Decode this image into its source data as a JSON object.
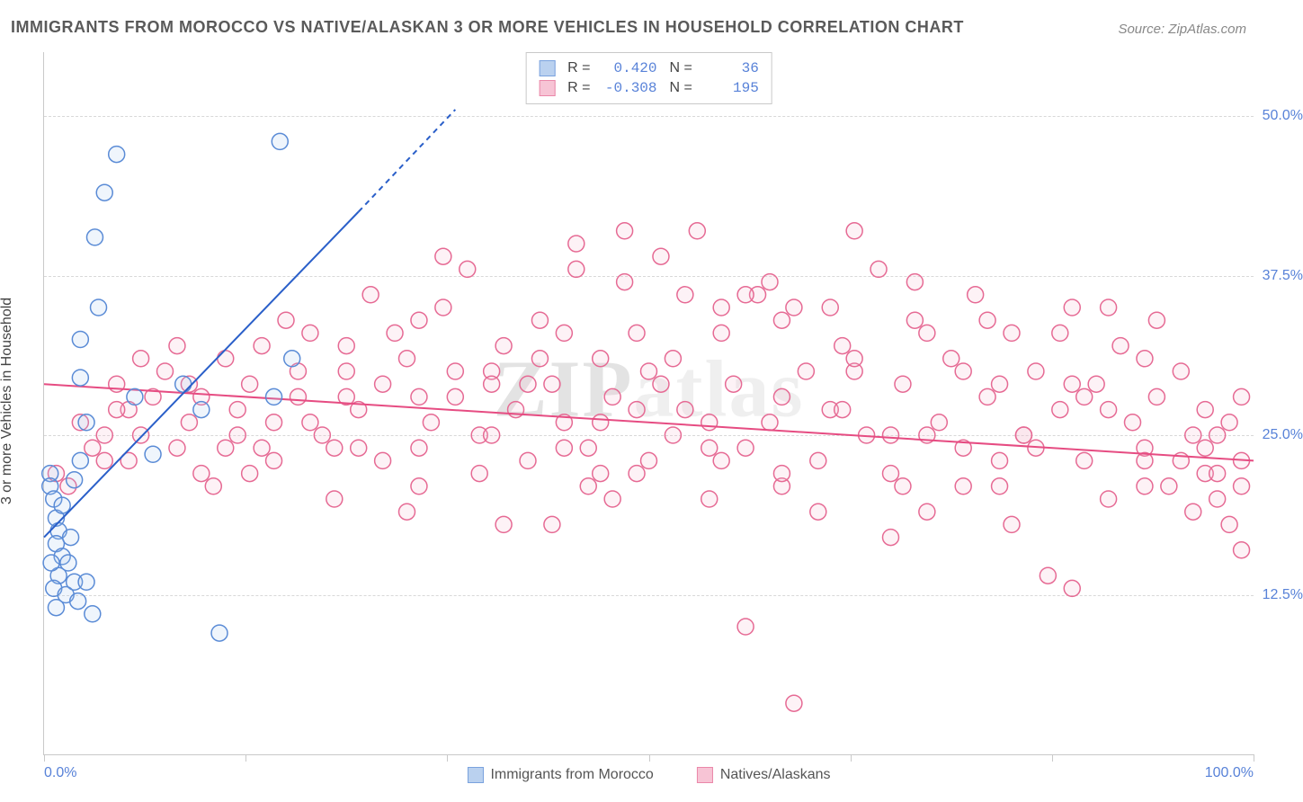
{
  "title": "IMMIGRANTS FROM MOROCCO VS NATIVE/ALASKAN 3 OR MORE VEHICLES IN HOUSEHOLD CORRELATION CHART",
  "source": "Source: ZipAtlas.com",
  "watermark_a": "ZIP",
  "watermark_b": "atlas",
  "y_axis_label": "3 or more Vehicles in Household",
  "chart": {
    "type": "scatter",
    "xlim": [
      0,
      100
    ],
    "ylim": [
      0,
      55
    ],
    "y_ticks": [
      12.5,
      25.0,
      37.5,
      50.0
    ],
    "y_tick_labels": [
      "12.5%",
      "25.0%",
      "37.5%",
      "50.0%"
    ],
    "x_ticks": [
      0,
      100
    ],
    "x_tick_labels": [
      "0.0%",
      "100.0%"
    ],
    "x_tick_marks": [
      0,
      16.67,
      33.33,
      50,
      66.67,
      83.33,
      100
    ],
    "background_color": "#ffffff",
    "grid_color": "#d8d8d8",
    "axis_color": "#c9c9c9",
    "tick_label_color": "#5882d8",
    "marker_radius": 9,
    "marker_stroke_width": 1.5,
    "marker_fill_opacity": 0.18,
    "series": [
      {
        "name": "Immigrants from Morocco",
        "legend_label": "Immigrants from Morocco",
        "color_stroke": "#5a8bd6",
        "color_fill": "#a9c6ec",
        "R": "0.420",
        "N": "36",
        "regression": {
          "x1": 0,
          "y1": 17.0,
          "x2": 26,
          "y2": 42.5,
          "dash_extend_to_x": 34,
          "dash_extend_to_y": 50.5,
          "color": "#2a5fc9",
          "width": 2
        },
        "points": [
          [
            0.5,
            22.0
          ],
          [
            0.5,
            21.0
          ],
          [
            0.8,
            20.0
          ],
          [
            1.0,
            18.5
          ],
          [
            1.2,
            17.5
          ],
          [
            1.0,
            16.5
          ],
          [
            1.5,
            15.5
          ],
          [
            2.0,
            15.0
          ],
          [
            1.2,
            14.0
          ],
          [
            2.5,
            13.5
          ],
          [
            0.8,
            13.0
          ],
          [
            1.8,
            12.5
          ],
          [
            2.8,
            12.0
          ],
          [
            1.0,
            11.5
          ],
          [
            3.5,
            13.5
          ],
          [
            4.0,
            11.0
          ],
          [
            3.0,
            23.0
          ],
          [
            3.5,
            26.0
          ],
          [
            4.5,
            35.0
          ],
          [
            5.0,
            44.0
          ],
          [
            6.0,
            47.0
          ],
          [
            3.0,
            29.5
          ],
          [
            3.0,
            32.5
          ],
          [
            2.5,
            21.5
          ],
          [
            4.2,
            40.5
          ],
          [
            7.5,
            28.0
          ],
          [
            9.0,
            23.5
          ],
          [
            11.5,
            29.0
          ],
          [
            13.0,
            27.0
          ],
          [
            14.5,
            9.5
          ],
          [
            19.5,
            48.0
          ],
          [
            19.0,
            28.0
          ],
          [
            20.5,
            31.0
          ],
          [
            1.5,
            19.5
          ],
          [
            2.2,
            17.0
          ],
          [
            0.6,
            15.0
          ]
        ]
      },
      {
        "name": "Natives/Alaskans",
        "legend_label": "Natives/Alaskans",
        "color_stroke": "#e66a94",
        "color_fill": "#f6b6cb",
        "R": "-0.308",
        "N": "195",
        "regression": {
          "x1": 0,
          "y1": 29.0,
          "x2": 100,
          "y2": 23.0,
          "color": "#e64c82",
          "width": 2
        },
        "points": [
          [
            1,
            22
          ],
          [
            2,
            21
          ],
          [
            3,
            26
          ],
          [
            4,
            24
          ],
          [
            5,
            23
          ],
          [
            6,
            29
          ],
          [
            7,
            27
          ],
          [
            8,
            25
          ],
          [
            9,
            28
          ],
          [
            10,
            30
          ],
          [
            11,
            24
          ],
          [
            12,
            26
          ],
          [
            13,
            22
          ],
          [
            14,
            21
          ],
          [
            15,
            31
          ],
          [
            16,
            27
          ],
          [
            17,
            29
          ],
          [
            18,
            24
          ],
          [
            19,
            26
          ],
          [
            20,
            34
          ],
          [
            21,
            28
          ],
          [
            22,
            33
          ],
          [
            23,
            25
          ],
          [
            24,
            24
          ],
          [
            25,
            30
          ],
          [
            26,
            27
          ],
          [
            27,
            36
          ],
          [
            28,
            29
          ],
          [
            29,
            33
          ],
          [
            30,
            31
          ],
          [
            31,
            24
          ],
          [
            32,
            26
          ],
          [
            33,
            35
          ],
          [
            34,
            28
          ],
          [
            35,
            38
          ],
          [
            36,
            25
          ],
          [
            37,
            30
          ],
          [
            38,
            32
          ],
          [
            39,
            27
          ],
          [
            40,
            23
          ],
          [
            41,
            34
          ],
          [
            42,
            29
          ],
          [
            43,
            26
          ],
          [
            44,
            40
          ],
          [
            45,
            24
          ],
          [
            46,
            31
          ],
          [
            47,
            28
          ],
          [
            48,
            37
          ],
          [
            49,
            22
          ],
          [
            50,
            30
          ],
          [
            51,
            39
          ],
          [
            52,
            25
          ],
          [
            53,
            27
          ],
          [
            54,
            41
          ],
          [
            55,
            20
          ],
          [
            56,
            33
          ],
          [
            57,
            29
          ],
          [
            58,
            24
          ],
          [
            59,
            36
          ],
          [
            60,
            26
          ],
          [
            61,
            21
          ],
          [
            62,
            35
          ],
          [
            63,
            30
          ],
          [
            64,
            23
          ],
          [
            65,
            27
          ],
          [
            66,
            32
          ],
          [
            67,
            41
          ],
          [
            68,
            25
          ],
          [
            69,
            38
          ],
          [
            70,
            22
          ],
          [
            71,
            29
          ],
          [
            72,
            34
          ],
          [
            73,
            19
          ],
          [
            74,
            26
          ],
          [
            75,
            31
          ],
          [
            76,
            24
          ],
          [
            77,
            36
          ],
          [
            78,
            28
          ],
          [
            79,
            21
          ],
          [
            80,
            33
          ],
          [
            81,
            25
          ],
          [
            82,
            30
          ],
          [
            83,
            14
          ],
          [
            84,
            27
          ],
          [
            85,
            35
          ],
          [
            86,
            23
          ],
          [
            87,
            29
          ],
          [
            88,
            20
          ],
          [
            89,
            32
          ],
          [
            90,
            26
          ],
          [
            91,
            24
          ],
          [
            92,
            28
          ],
          [
            93,
            21
          ],
          [
            94,
            30
          ],
          [
            95,
            25
          ],
          [
            96,
            22
          ],
          [
            97,
            20
          ],
          [
            98,
            26
          ],
          [
            99,
            21
          ],
          [
            99,
            16
          ],
          [
            5,
            25
          ],
          [
            8,
            31
          ],
          [
            12,
            29
          ],
          [
            15,
            24
          ],
          [
            18,
            32
          ],
          [
            22,
            26
          ],
          [
            25,
            28
          ],
          [
            28,
            23
          ],
          [
            31,
            34
          ],
          [
            34,
            30
          ],
          [
            37,
            25
          ],
          [
            40,
            29
          ],
          [
            43,
            33
          ],
          [
            46,
            22
          ],
          [
            49,
            27
          ],
          [
            52,
            31
          ],
          [
            55,
            24
          ],
          [
            58,
            36
          ],
          [
            61,
            28
          ],
          [
            64,
            19
          ],
          [
            67,
            30
          ],
          [
            70,
            25
          ],
          [
            73,
            33
          ],
          [
            76,
            21
          ],
          [
            79,
            29
          ],
          [
            82,
            24
          ],
          [
            85,
            13
          ],
          [
            88,
            27
          ],
          [
            91,
            31
          ],
          [
            94,
            23
          ],
          [
            6,
            27
          ],
          [
            11,
            32
          ],
          [
            16,
            25
          ],
          [
            21,
            30
          ],
          [
            26,
            24
          ],
          [
            31,
            28
          ],
          [
            36,
            22
          ],
          [
            41,
            31
          ],
          [
            46,
            26
          ],
          [
            51,
            29
          ],
          [
            56,
            23
          ],
          [
            61,
            34
          ],
          [
            66,
            27
          ],
          [
            71,
            21
          ],
          [
            76,
            30
          ],
          [
            81,
            25
          ],
          [
            86,
            28
          ],
          [
            91,
            23
          ],
          [
            96,
            24
          ],
          [
            95,
            19
          ],
          [
            7,
            23
          ],
          [
            13,
            28
          ],
          [
            19,
            23
          ],
          [
            25,
            32
          ],
          [
            31,
            21
          ],
          [
            37,
            29
          ],
          [
            43,
            24
          ],
          [
            49,
            33
          ],
          [
            55,
            26
          ],
          [
            61,
            22
          ],
          [
            67,
            31
          ],
          [
            73,
            25
          ],
          [
            79,
            23
          ],
          [
            85,
            29
          ],
          [
            91,
            21
          ],
          [
            97,
            25
          ],
          [
            58,
            10
          ],
          [
            70,
            17
          ],
          [
            62,
            4
          ],
          [
            80,
            18
          ],
          [
            33,
            39
          ],
          [
            44,
            38
          ],
          [
            48,
            41
          ],
          [
            53,
            36
          ],
          [
            42,
            18
          ],
          [
            47,
            20
          ],
          [
            38,
            18
          ],
          [
            30,
            19
          ],
          [
            24,
            20
          ],
          [
            17,
            22
          ],
          [
            88,
            35
          ],
          [
            92,
            34
          ],
          [
            78,
            34
          ],
          [
            84,
            33
          ],
          [
            72,
            37
          ],
          [
            65,
            35
          ],
          [
            60,
            37
          ],
          [
            56,
            35
          ],
          [
            50,
            23
          ],
          [
            45,
            21
          ],
          [
            97,
            22
          ],
          [
            98,
            18
          ],
          [
            99,
            23
          ],
          [
            99,
            28
          ],
          [
            96,
            27
          ]
        ]
      }
    ]
  },
  "stats_box": {
    "R_label": "R =",
    "N_label": "N ="
  },
  "legend": {
    "series1_label": "Immigrants from Morocco",
    "series2_label": "Natives/Alaskans"
  }
}
